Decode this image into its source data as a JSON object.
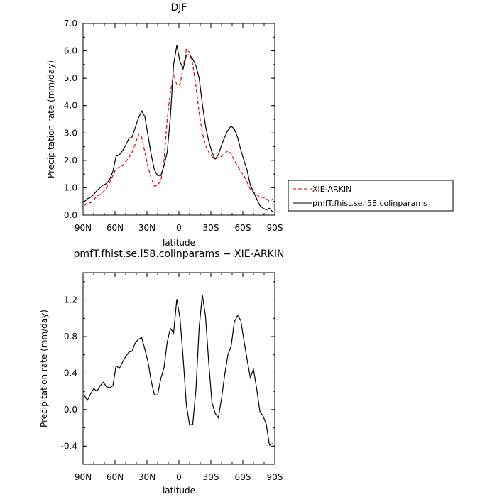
{
  "chart_data": [
    {
      "type": "line",
      "title": "DJF",
      "xlabel": "latitude",
      "ylabel": "Precipitation rate (mm/day)",
      "xlim": [
        90,
        -90
      ],
      "ylim": [
        0,
        7
      ],
      "xticks": [
        {
          "v": 90,
          "label": "90N"
        },
        {
          "v": 60,
          "label": "60N"
        },
        {
          "v": 30,
          "label": "30N"
        },
        {
          "v": 0,
          "label": "0"
        },
        {
          "v": -30,
          "label": "30S"
        },
        {
          "v": -60,
          "label": "60S"
        },
        {
          "v": -90,
          "label": "90S"
        }
      ],
      "yticks": [
        {
          "v": 0,
          "label": "0.0"
        },
        {
          "v": 1,
          "label": "1.0"
        },
        {
          "v": 2,
          "label": "2.0"
        },
        {
          "v": 3,
          "label": "3.0"
        },
        {
          "v": 4,
          "label": "4.0"
        },
        {
          "v": 5,
          "label": "5.0"
        },
        {
          "v": 6,
          "label": "6.0"
        },
        {
          "v": 7,
          "label": "7.0"
        }
      ],
      "legend": "right",
      "series": [
        {
          "name": "XIE-ARKIN",
          "color": "#e00000",
          "dash": true,
          "x": [
            88.5,
            86,
            83,
            80,
            77,
            74,
            71,
            68,
            65,
            62,
            59,
            56,
            53,
            50,
            47,
            44,
            41,
            38,
            35,
            32,
            29,
            26,
            23,
            20,
            17,
            14,
            11,
            8,
            5,
            2,
            -1,
            -4,
            -7,
            -10,
            -13,
            -16,
            -19,
            -22,
            -25,
            -28,
            -31,
            -34,
            -37,
            -40,
            -43,
            -46,
            -49,
            -52,
            -55,
            -58,
            -61,
            -64,
            -67,
            -70,
            -73,
            -76,
            -79,
            -82,
            -85,
            -88.5
          ],
          "y": [
            0.35,
            0.45,
            0.45,
            0.55,
            0.7,
            0.75,
            0.85,
            1.0,
            1.2,
            1.45,
            1.7,
            1.75,
            1.8,
            1.95,
            2.1,
            2.3,
            2.6,
            2.95,
            2.85,
            2.3,
            1.75,
            1.35,
            1.05,
            1.1,
            1.25,
            2.0,
            3.5,
            4.5,
            5.15,
            4.75,
            4.75,
            5.4,
            6.05,
            5.95,
            5.5,
            4.7,
            3.75,
            3.0,
            2.55,
            2.3,
            2.15,
            2.05,
            2.1,
            2.15,
            2.25,
            2.35,
            2.25,
            2.0,
            1.8,
            1.6,
            1.45,
            1.2,
            0.95,
            0.85,
            0.75,
            0.65,
            0.65,
            0.6,
            0.5,
            0.6
          ]
        },
        {
          "name": "pmfT.fhist.se.l58.colinparams",
          "color": "#000000",
          "dash": false,
          "x": [
            88.5,
            86,
            83,
            80,
            77,
            74,
            71,
            68,
            65,
            62,
            59,
            56,
            53,
            50,
            47,
            44,
            41,
            38,
            35,
            32,
            29,
            26,
            23,
            20,
            17,
            14,
            11,
            8,
            5,
            2,
            -1,
            -4,
            -7,
            -10,
            -13,
            -16,
            -19,
            -22,
            -25,
            -28,
            -31,
            -34,
            -37,
            -40,
            -43,
            -46,
            -49,
            -52,
            -55,
            -58,
            -61,
            -64,
            -67,
            -70,
            -73,
            -76,
            -79,
            -82,
            -85,
            -88.5
          ],
          "y": [
            0.5,
            0.6,
            0.65,
            0.75,
            0.9,
            1.0,
            1.1,
            1.15,
            1.3,
            1.6,
            2.15,
            2.2,
            2.35,
            2.55,
            2.8,
            2.85,
            3.2,
            3.55,
            3.8,
            3.6,
            2.9,
            2.2,
            1.65,
            1.45,
            1.45,
            1.8,
            2.3,
            3.6,
            5.5,
            6.2,
            5.6,
            5.35,
            5.85,
            5.85,
            5.7,
            5.45,
            5.0,
            4.05,
            3.25,
            2.7,
            2.3,
            2.05,
            2.2,
            2.55,
            2.85,
            3.1,
            3.25,
            3.15,
            2.85,
            2.4,
            2.0,
            1.65,
            1.1,
            0.85,
            0.6,
            0.35,
            0.25,
            0.2,
            0.25,
            0.1
          ]
        }
      ]
    },
    {
      "type": "line",
      "title": "pmfT.fhist.se.l58.colinparams − XIE-ARKIN",
      "xlabel": "latitude",
      "ylabel": "Precipitation rate (mm/day)",
      "xlim": [
        90,
        -90
      ],
      "ylim": [
        -0.6,
        1.5
      ],
      "xticks": [
        {
          "v": 90,
          "label": "90N"
        },
        {
          "v": 60,
          "label": "60N"
        },
        {
          "v": 30,
          "label": "30N"
        },
        {
          "v": 0,
          "label": "0"
        },
        {
          "v": -30,
          "label": "30S"
        },
        {
          "v": -60,
          "label": "60S"
        },
        {
          "v": -90,
          "label": "90S"
        }
      ],
      "yticks": [
        {
          "v": -0.4,
          "label": "-0.4"
        },
        {
          "v": 0,
          "label": "0.0"
        },
        {
          "v": 0.4,
          "label": "0.4"
        },
        {
          "v": 0.8,
          "label": "0.8"
        },
        {
          "v": 1.2,
          "label": "1.2"
        }
      ],
      "series": [
        {
          "color": "#000000",
          "dash": false,
          "x": [
            88.5,
            86,
            83,
            80,
            77,
            74,
            71,
            68,
            65,
            62,
            59,
            56,
            53,
            50,
            47,
            44,
            41,
            38,
            35,
            32,
            29,
            26,
            23,
            20,
            17,
            14,
            11,
            8,
            5,
            2,
            -1,
            -4,
            -7,
            -10,
            -13,
            -16,
            -19,
            -22,
            -25,
            -28,
            -31,
            -34,
            -37,
            -40,
            -43,
            -46,
            -49,
            -52,
            -55,
            -58,
            -61,
            -64,
            -67,
            -70,
            -73,
            -76,
            -79,
            -82,
            -85,
            -88.5
          ],
          "y": [
            0.15,
            0.1,
            0.17,
            0.23,
            0.2,
            0.26,
            0.3,
            0.25,
            0.24,
            0.26,
            0.48,
            0.45,
            0.52,
            0.58,
            0.63,
            0.64,
            0.73,
            0.77,
            0.79,
            0.66,
            0.52,
            0.31,
            0.16,
            0.16,
            0.34,
            0.46,
            0.74,
            0.89,
            0.84,
            1.21,
            1.0,
            0.56,
            0.05,
            -0.17,
            -0.16,
            0.22,
            0.9,
            1.26,
            1.02,
            0.51,
            0.08,
            -0.04,
            -0.09,
            0.12,
            0.38,
            0.6,
            0.69,
            0.96,
            1.03,
            0.98,
            0.76,
            0.55,
            0.35,
            0.44,
            0.23,
            -0.02,
            -0.07,
            -0.16,
            -0.39,
            -0.37
          ]
        }
      ]
    }
  ]
}
